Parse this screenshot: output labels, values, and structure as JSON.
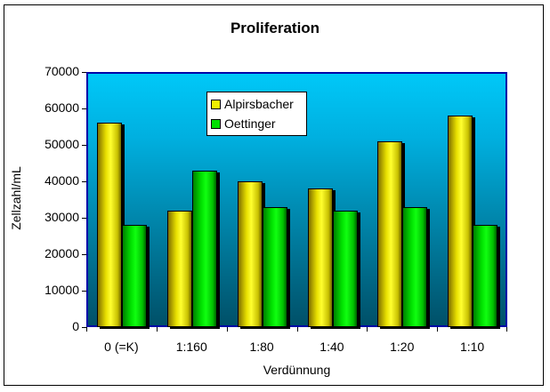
{
  "chart_data": {
    "type": "bar",
    "title": "Proliferation",
    "xlabel": "Verdünnung",
    "ylabel": "Zellzahl/mL",
    "categories": [
      "0 (=K)",
      "1:160",
      "1:80",
      "1:40",
      "1:20",
      "1:10"
    ],
    "series": [
      {
        "name": "Alpirsbacher",
        "color": "#f0f000",
        "values": [
          56000,
          32000,
          40000,
          38000,
          51000,
          58000
        ]
      },
      {
        "name": "Oettinger",
        "color": "#00e000",
        "values": [
          28000,
          43000,
          33000,
          32000,
          33000,
          28000
        ]
      }
    ],
    "ylim": [
      0,
      70000
    ],
    "yticks": [
      "0",
      "10000",
      "20000",
      "30000",
      "40000",
      "50000",
      "60000",
      "70000"
    ],
    "grid": false,
    "legend_position": "inside-top-left",
    "plot_background": "gradient #00c8f8 to #005068",
    "plot_border_color": "#0000a8"
  },
  "legend": {
    "items": [
      {
        "label": "Alpirsbacher"
      },
      {
        "label": "Oettinger"
      }
    ]
  }
}
